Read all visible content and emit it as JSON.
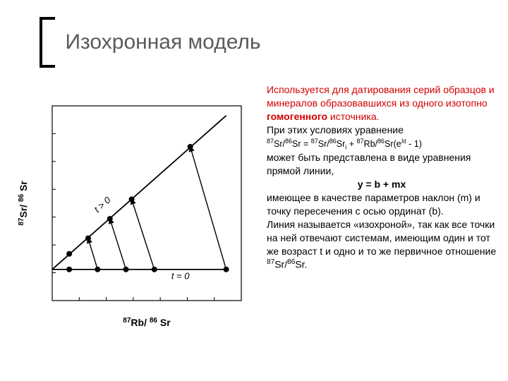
{
  "title": "Изохронная модель",
  "text": {
    "p1": "Используется для датирования серий образцов и минералов образовавшихся из одного изотопно ",
    "p1_bold": "гомогенного",
    "p1_tail": " источника.",
    "p2": "При этих условиях уравнение",
    "eq_left": "87Sr/86Sr = 87Sr/86Sr",
    "eq_sub": "i",
    "eq_mid": " + 87Rb/86Sr(e",
    "eq_exp": "λt",
    "eq_right": " - 1)",
    "p3": "может быть представлена в виде уравнения прямой линии,",
    "eq2": "y = b + mx",
    "p4": "имеющее в качестве параметров наклон (m) и точку пересечения с осью ординат (b).",
    "p5a": "Линия называется «изохроной», так как все точки на ней отвечают системам, имеющим один и тот же возраст t и одно и то же первичное отношение ",
    "p5b": "87Sr/86Sr."
  },
  "diagram": {
    "type": "scatter+lines",
    "background_color": "#ffffff",
    "border_color": "#000000",
    "tick_color": "#000000",
    "point_color": "#000000",
    "line_color": "#000000",
    "xlabel_pre": "87",
    "xlabel_mid": "Rb/ ",
    "xlabel_pre2": "86",
    "xlabel_tail": "Sr",
    "ylabel_pre": "87",
    "ylabel_mid": "Sr/ ",
    "ylabel_pre2": "86",
    "ylabel_tail": "Sr",
    "label_fontsize": 14,
    "annot_t0": "t = 0",
    "annot_tpos": "t > 0",
    "xlim": [
      0,
      10
    ],
    "ylim": [
      0,
      10
    ],
    "intercept_t0": 1.6,
    "lower_points_x": [
      0.9,
      2.4,
      3.9,
      5.4,
      9.2
    ],
    "lower_points_y": [
      1.6,
      1.6,
      1.6,
      1.6,
      1.6
    ],
    "upper_line_start": [
      0.0,
      1.6
    ],
    "upper_line_end": [
      9.2,
      9.5
    ],
    "upper_points_x": [
      0.9,
      1.9,
      3.05,
      4.2,
      7.3
    ],
    "upper_points_y": [
      2.4,
      3.2,
      4.2,
      5.2,
      7.9
    ],
    "arrows": [
      {
        "from": [
          2.4,
          1.6
        ],
        "to": [
          1.9,
          3.2
        ]
      },
      {
        "from": [
          3.9,
          1.6
        ],
        "to": [
          3.05,
          4.2
        ]
      },
      {
        "from": [
          5.4,
          1.6
        ],
        "to": [
          4.2,
          5.2
        ]
      },
      {
        "from": [
          9.2,
          1.6
        ],
        "to": [
          7.3,
          7.9
        ]
      }
    ],
    "point_radius": 4,
    "line_width": 1.8
  },
  "colors": {
    "title": "#5a5a5a",
    "red": "#d10000",
    "black": "#000000",
    "bg": "#ffffff"
  }
}
